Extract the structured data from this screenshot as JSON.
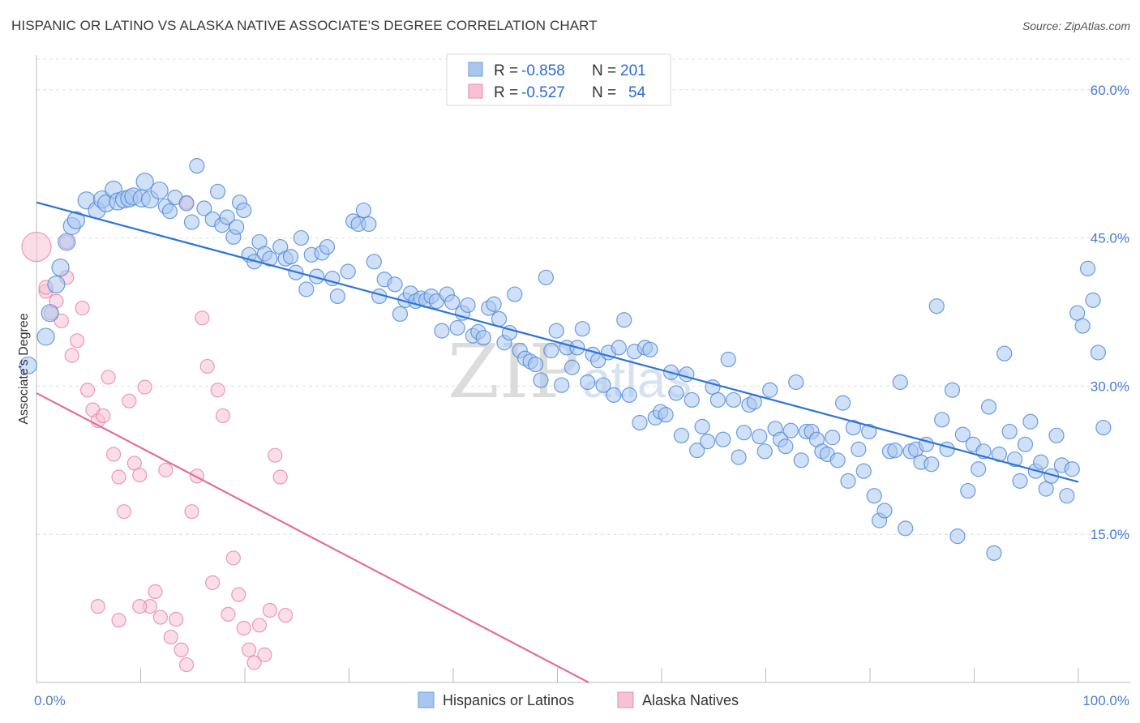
{
  "title": "HISPANIC OR LATINO VS ALASKA NATIVE ASSOCIATE'S DEGREE CORRELATION CHART",
  "source": "Source: ZipAtlas.com",
  "watermark": {
    "part1": "ZIP",
    "part2": "atlas"
  },
  "colors": {
    "blue": "#4a86d8",
    "blue_fill": "#a9c6ef",
    "blue_line": "#2e74d4",
    "pink": "#e57ba0",
    "pink_fill": "#f6c1d3",
    "pink_line": "#e0709a",
    "grid": "#dddddd",
    "tick_text": "#4a7bd0"
  },
  "legend": {
    "rows": [
      {
        "r_label": "R = ",
        "r_value": "-0.858",
        "n_label": "N = ",
        "n_value": "201"
      },
      {
        "r_label": "R = ",
        "r_value": "-0.527",
        "n_label": "N = ",
        "n_value": "54"
      }
    ]
  },
  "chart_data": {
    "type": "scatter",
    "title": "HISPANIC OR LATINO VS ALASKA NATIVE ASSOCIATE'S DEGREE CORRELATION CHART",
    "xlabel": "",
    "ylabel": "Associate's Degree",
    "xlim": [
      0,
      100
    ],
    "ylim": [
      0,
      63.1
    ],
    "x_tick_labels": [
      "0.0%",
      "100.0%"
    ],
    "y_ticks": [
      15,
      30,
      45,
      60
    ],
    "y_tick_labels": [
      "15.0%",
      "30.0%",
      "45.0%",
      "60.0%"
    ],
    "grid": true,
    "legend_position": "top-center",
    "series": [
      {
        "name": "Hispanics or Latinos",
        "r": -0.858,
        "n": 201,
        "trend": {
          "x": [
            0,
            100
          ],
          "y": [
            48.6,
            20.3
          ]
        },
        "points": [
          [
            -0.8,
            32.1
          ],
          [
            0.9,
            35.0
          ],
          [
            1.3,
            37.4
          ],
          [
            1.9,
            40.3
          ],
          [
            2.3,
            42.0
          ],
          [
            2.9,
            44.6
          ],
          [
            3.4,
            46.2
          ],
          [
            3.8,
            46.8
          ],
          [
            4.8,
            48.8
          ],
          [
            5.8,
            47.8
          ],
          [
            6.3,
            48.9
          ],
          [
            6.7,
            48.5
          ],
          [
            7.4,
            49.9
          ],
          [
            7.8,
            48.7
          ],
          [
            8.4,
            48.9
          ],
          [
            8.9,
            49.0
          ],
          [
            9.3,
            49.2
          ],
          [
            10.1,
            49.0
          ],
          [
            10.4,
            50.7
          ],
          [
            10.9,
            48.9
          ],
          [
            11.8,
            49.8
          ],
          [
            12.4,
            48.2
          ],
          [
            12.8,
            47.7
          ],
          [
            13.3,
            49.1
          ],
          [
            14.4,
            48.5
          ],
          [
            14.9,
            46.6
          ],
          [
            15.4,
            52.3
          ],
          [
            16.1,
            48.0
          ],
          [
            16.9,
            46.9
          ],
          [
            17.4,
            49.7
          ],
          [
            17.8,
            46.3
          ],
          [
            18.3,
            47.1
          ],
          [
            18.9,
            45.1
          ],
          [
            19.2,
            46.1
          ],
          [
            19.5,
            48.6
          ],
          [
            19.9,
            47.8
          ],
          [
            20.4,
            43.3
          ],
          [
            20.9,
            42.6
          ],
          [
            21.4,
            44.6
          ],
          [
            21.9,
            43.4
          ],
          [
            22.4,
            42.9
          ],
          [
            23.4,
            44.1
          ],
          [
            23.9,
            42.9
          ],
          [
            24.4,
            43.1
          ],
          [
            24.9,
            41.5
          ],
          [
            25.4,
            45.0
          ],
          [
            25.9,
            39.8
          ],
          [
            26.4,
            43.3
          ],
          [
            26.9,
            41.1
          ],
          [
            27.4,
            43.5
          ],
          [
            27.9,
            44.1
          ],
          [
            28.4,
            40.9
          ],
          [
            28.9,
            39.1
          ],
          [
            29.9,
            41.6
          ],
          [
            30.4,
            46.7
          ],
          [
            30.9,
            46.4
          ],
          [
            31.4,
            47.8
          ],
          [
            31.9,
            46.4
          ],
          [
            32.4,
            42.6
          ],
          [
            32.9,
            39.1
          ],
          [
            33.4,
            40.8
          ],
          [
            34.4,
            40.3
          ],
          [
            34.9,
            37.3
          ],
          [
            35.4,
            38.7
          ],
          [
            35.9,
            39.4
          ],
          [
            36.4,
            38.6
          ],
          [
            36.9,
            38.9
          ],
          [
            37.4,
            38.7
          ],
          [
            37.9,
            39.1
          ],
          [
            38.4,
            38.6
          ],
          [
            38.9,
            35.6
          ],
          [
            39.4,
            39.3
          ],
          [
            39.9,
            38.5
          ],
          [
            40.4,
            35.9
          ],
          [
            40.9,
            37.4
          ],
          [
            41.4,
            38.2
          ],
          [
            41.9,
            35.1
          ],
          [
            42.4,
            35.5
          ],
          [
            42.9,
            34.9
          ],
          [
            43.4,
            37.9
          ],
          [
            43.9,
            38.3
          ],
          [
            44.4,
            36.8
          ],
          [
            44.9,
            34.4
          ],
          [
            45.4,
            35.4
          ],
          [
            45.9,
            39.3
          ],
          [
            46.4,
            33.6
          ],
          [
            46.9,
            32.8
          ],
          [
            47.4,
            32.5
          ],
          [
            47.9,
            32.2
          ],
          [
            48.4,
            30.6
          ],
          [
            48.9,
            41.0
          ],
          [
            49.4,
            33.6
          ],
          [
            49.9,
            35.6
          ],
          [
            50.4,
            30.1
          ],
          [
            50.9,
            33.9
          ],
          [
            51.4,
            31.9
          ],
          [
            51.9,
            33.9
          ],
          [
            52.4,
            35.8
          ],
          [
            52.9,
            30.4
          ],
          [
            53.4,
            33.2
          ],
          [
            53.9,
            32.6
          ],
          [
            54.4,
            30.1
          ],
          [
            54.9,
            33.4
          ],
          [
            55.4,
            29.1
          ],
          [
            55.9,
            33.9
          ],
          [
            56.4,
            36.7
          ],
          [
            56.9,
            29.1
          ],
          [
            57.4,
            33.5
          ],
          [
            57.9,
            26.3
          ],
          [
            58.4,
            33.9
          ],
          [
            58.9,
            33.7
          ],
          [
            59.4,
            26.8
          ],
          [
            59.9,
            27.4
          ],
          [
            60.4,
            27.1
          ],
          [
            60.9,
            31.4
          ],
          [
            61.4,
            29.3
          ],
          [
            61.9,
            25.0
          ],
          [
            62.4,
            31.2
          ],
          [
            62.9,
            28.6
          ],
          [
            63.4,
            23.5
          ],
          [
            63.9,
            25.9
          ],
          [
            64.4,
            24.4
          ],
          [
            64.9,
            29.9
          ],
          [
            65.4,
            28.6
          ],
          [
            65.9,
            24.6
          ],
          [
            66.4,
            32.7
          ],
          [
            66.9,
            28.6
          ],
          [
            67.4,
            22.8
          ],
          [
            67.9,
            25.3
          ],
          [
            68.4,
            28.1
          ],
          [
            68.9,
            28.4
          ],
          [
            69.4,
            24.9
          ],
          [
            69.9,
            23.4
          ],
          [
            70.4,
            29.6
          ],
          [
            70.9,
            25.7
          ],
          [
            71.4,
            24.6
          ],
          [
            71.9,
            23.9
          ],
          [
            72.4,
            25.5
          ],
          [
            72.9,
            30.4
          ],
          [
            73.4,
            22.5
          ],
          [
            73.9,
            25.4
          ],
          [
            74.4,
            25.4
          ],
          [
            74.9,
            24.6
          ],
          [
            75.4,
            23.4
          ],
          [
            75.9,
            23.1
          ],
          [
            76.4,
            24.8
          ],
          [
            76.9,
            22.5
          ],
          [
            77.4,
            28.3
          ],
          [
            77.9,
            20.4
          ],
          [
            78.4,
            25.8
          ],
          [
            78.9,
            23.6
          ],
          [
            79.4,
            21.4
          ],
          [
            79.9,
            25.4
          ],
          [
            80.4,
            18.9
          ],
          [
            80.9,
            16.4
          ],
          [
            81.4,
            17.4
          ],
          [
            81.9,
            23.4
          ],
          [
            82.4,
            23.5
          ],
          [
            82.9,
            30.4
          ],
          [
            83.4,
            15.6
          ],
          [
            83.9,
            23.4
          ],
          [
            84.4,
            23.6
          ],
          [
            84.9,
            22.3
          ],
          [
            85.4,
            24.1
          ],
          [
            85.9,
            22.1
          ],
          [
            86.4,
            38.1
          ],
          [
            86.9,
            26.6
          ],
          [
            87.4,
            23.6
          ],
          [
            87.9,
            29.6
          ],
          [
            88.4,
            14.8
          ],
          [
            88.9,
            25.1
          ],
          [
            89.4,
            19.4
          ],
          [
            89.9,
            24.1
          ],
          [
            90.4,
            21.6
          ],
          [
            90.9,
            23.4
          ],
          [
            91.4,
            27.9
          ],
          [
            91.9,
            13.1
          ],
          [
            92.4,
            23.1
          ],
          [
            92.9,
            33.3
          ],
          [
            93.4,
            25.4
          ],
          [
            93.9,
            22.6
          ],
          [
            94.4,
            20.4
          ],
          [
            94.9,
            24.1
          ],
          [
            95.4,
            26.4
          ],
          [
            95.9,
            21.4
          ],
          [
            96.4,
            22.3
          ],
          [
            96.9,
            19.6
          ],
          [
            97.4,
            20.9
          ],
          [
            97.9,
            25.0
          ],
          [
            98.4,
            22.0
          ],
          [
            98.9,
            18.9
          ],
          [
            99.4,
            21.6
          ],
          [
            99.9,
            37.4
          ],
          [
            100.4,
            36.1
          ],
          [
            100.9,
            41.9
          ],
          [
            101.4,
            38.7
          ],
          [
            101.9,
            33.4
          ],
          [
            102.4,
            25.8
          ]
        ]
      },
      {
        "name": "Alaska Natives",
        "r": -0.527,
        "n": 54,
        "trend": {
          "x": [
            0,
            53
          ],
          "y": [
            29.3,
            0
          ]
        },
        "points": [
          [
            0.0,
            44.1
          ],
          [
            0.9,
            39.6
          ],
          [
            1.4,
            37.4
          ],
          [
            1.9,
            38.6
          ],
          [
            2.4,
            36.6
          ],
          [
            2.9,
            41.0
          ],
          [
            3.4,
            33.1
          ],
          [
            3.9,
            34.6
          ],
          [
            4.4,
            37.9
          ],
          [
            4.9,
            29.6
          ],
          [
            5.4,
            27.6
          ],
          [
            5.9,
            26.5
          ],
          [
            6.4,
            27.0
          ],
          [
            6.9,
            30.9
          ],
          [
            7.4,
            23.1
          ],
          [
            7.9,
            20.8
          ],
          [
            8.4,
            17.3
          ],
          [
            8.9,
            28.5
          ],
          [
            9.4,
            22.2
          ],
          [
            9.9,
            21.0
          ],
          [
            10.4,
            29.9
          ],
          [
            10.9,
            7.7
          ],
          [
            11.4,
            9.2
          ],
          [
            11.9,
            6.6
          ],
          [
            12.4,
            21.5
          ],
          [
            12.9,
            4.6
          ],
          [
            13.4,
            6.4
          ],
          [
            13.9,
            3.3
          ],
          [
            14.4,
            1.8
          ],
          [
            14.9,
            17.3
          ],
          [
            15.4,
            20.9
          ],
          [
            15.9,
            36.9
          ],
          [
            16.4,
            32.0
          ],
          [
            16.9,
            10.1
          ],
          [
            17.4,
            29.6
          ],
          [
            17.9,
            27.0
          ],
          [
            18.4,
            6.9
          ],
          [
            18.9,
            12.6
          ],
          [
            19.4,
            8.9
          ],
          [
            19.9,
            5.5
          ],
          [
            20.4,
            3.3
          ],
          [
            20.9,
            2.0
          ],
          [
            21.4,
            5.8
          ],
          [
            21.9,
            2.8
          ],
          [
            22.4,
            7.3
          ],
          [
            22.9,
            23.0
          ],
          [
            23.4,
            20.8
          ],
          [
            23.9,
            6.8
          ],
          [
            9.9,
            7.7
          ],
          [
            7.9,
            6.3
          ],
          [
            2.9,
            44.6
          ],
          [
            5.9,
            7.7
          ],
          [
            14.4,
            48.6
          ],
          [
            0.9,
            40.0
          ]
        ]
      }
    ]
  },
  "bottom_legend": [
    {
      "label": "Hispanics or Latinos"
    },
    {
      "label": "Alaska Natives"
    }
  ]
}
